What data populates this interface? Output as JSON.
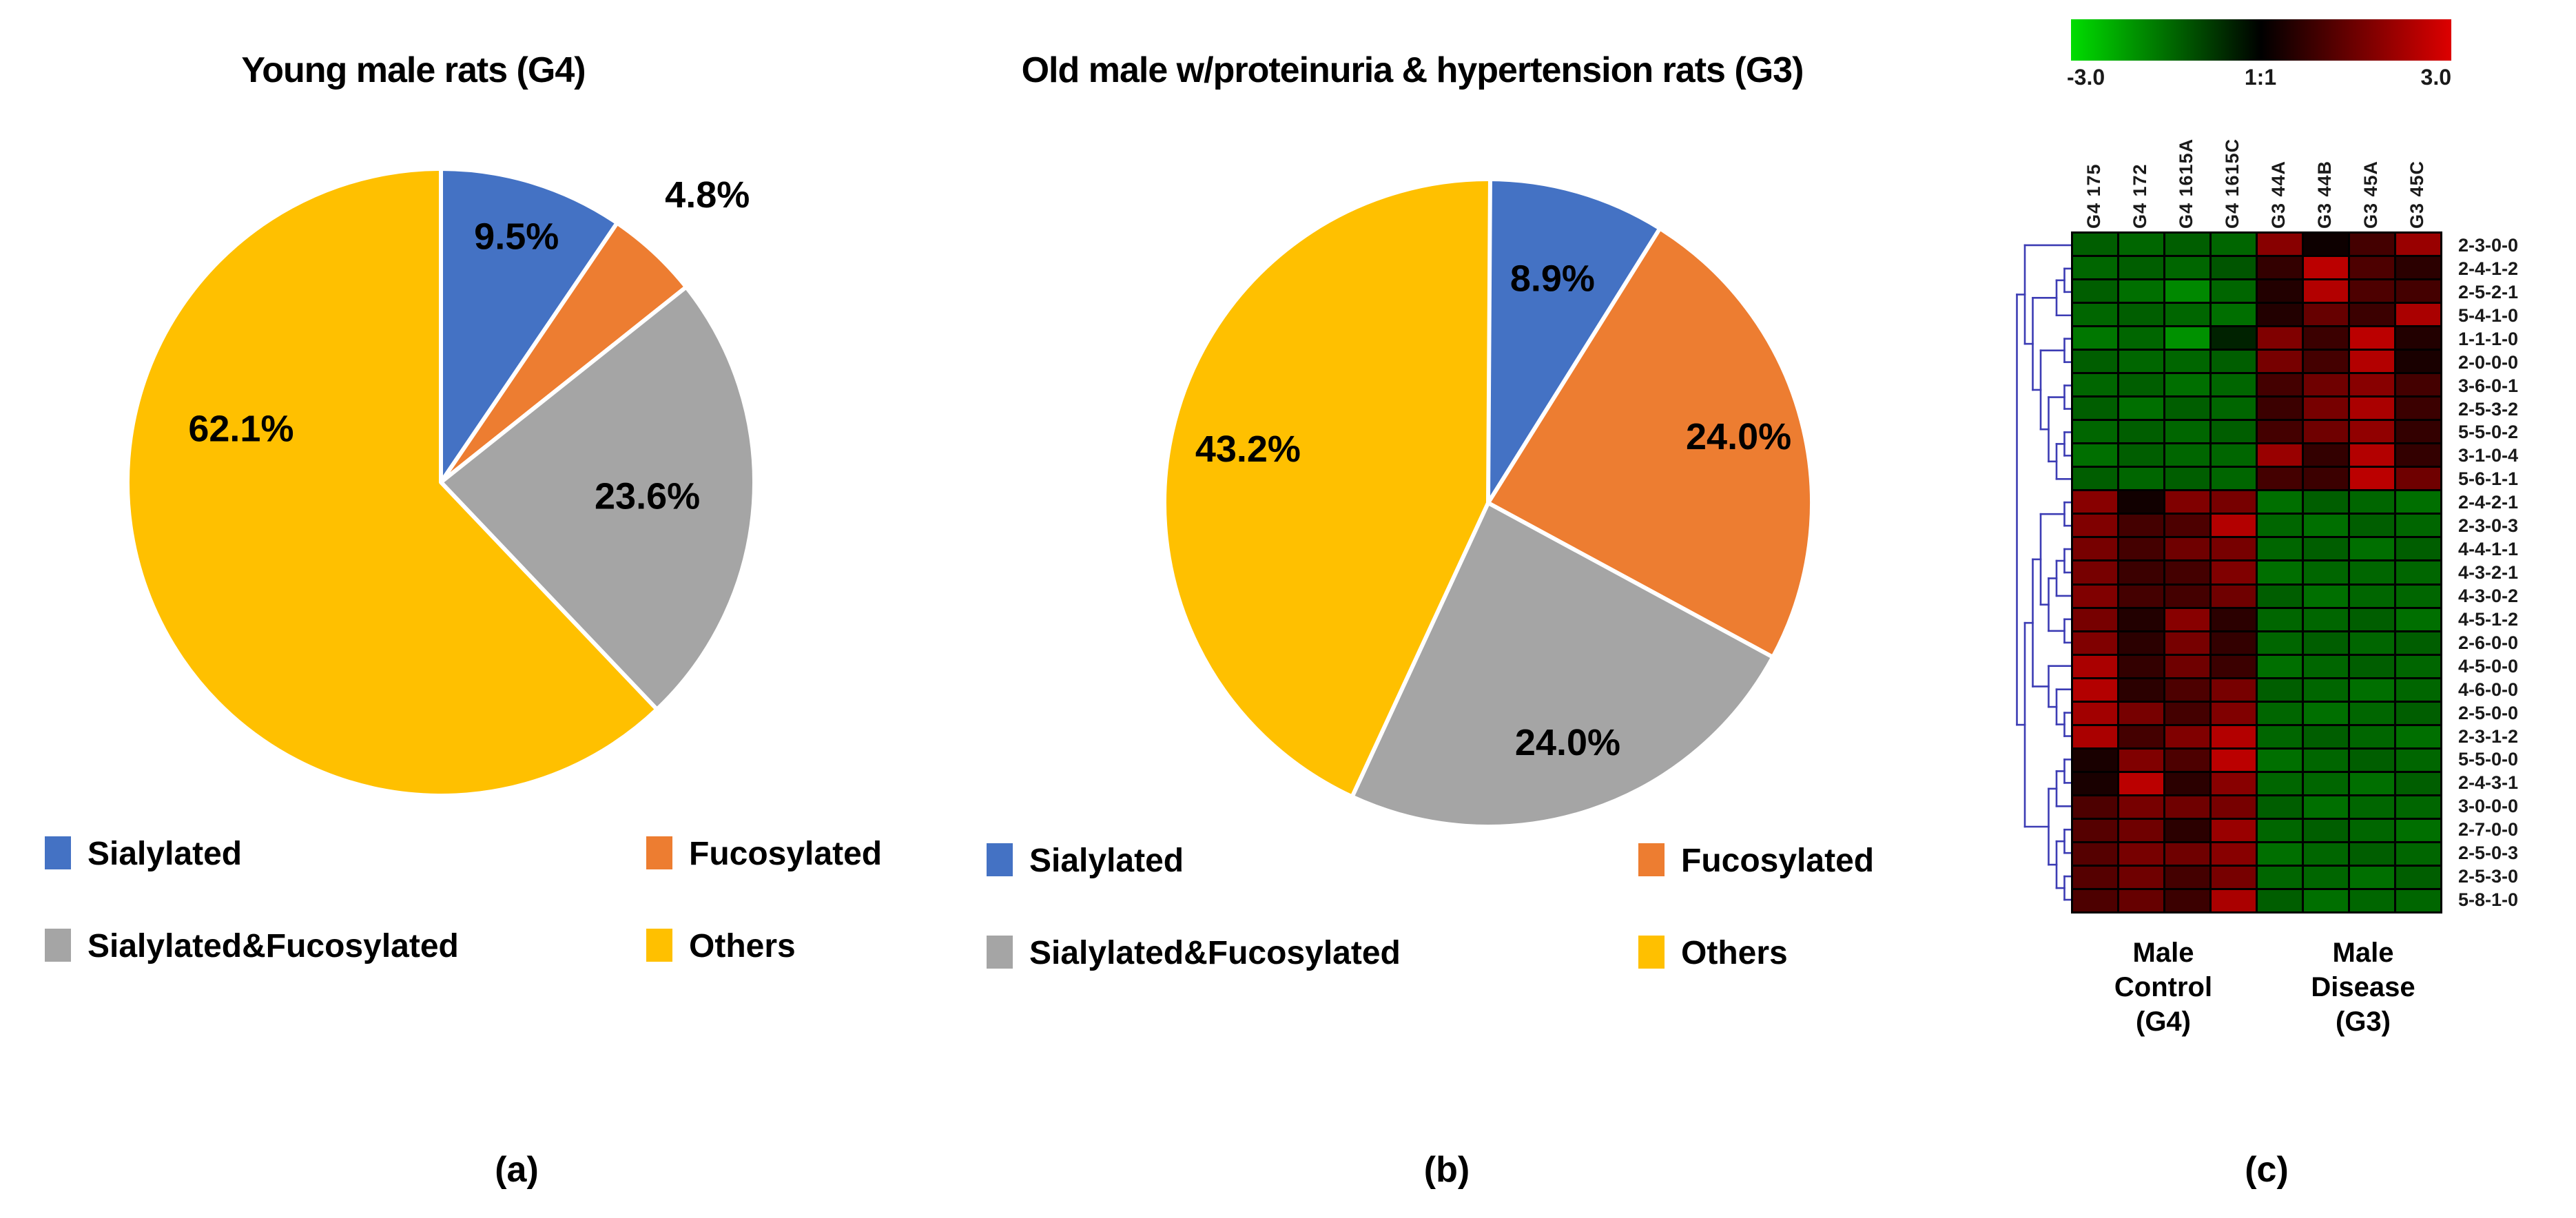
{
  "chart_data": [
    {
      "type": "pie",
      "title": "Young male rats (G4)",
      "caption": "(a)",
      "labels": [
        "Sialylated",
        "Fucosylated",
        "Sialylated&Fucosylated",
        "Others"
      ],
      "values": [
        9.5,
        4.8,
        23.6,
        62.1
      ],
      "value_labels": [
        "9.5%",
        "4.8%",
        "23.6%",
        "62.1%"
      ],
      "colors": [
        "#4472C4",
        "#ED7D31",
        "#A5A5A5",
        "#FFC000"
      ],
      "label_r": [
        0.82,
        1.25,
        0.66,
        0.66
      ],
      "label_angle": [
        null,
        null,
        null,
        285
      ],
      "start_angle_deg": 0,
      "direction": "clockwise",
      "center": [
        640,
        700
      ],
      "radius": 455
    },
    {
      "type": "pie",
      "title": "Old male w/proteinuria & hypertension rats  (G3)",
      "caption": "(b)",
      "labels": [
        "Sialylated",
        "Fucosylated",
        "Sialylated&Fucosylated",
        "Others"
      ],
      "values": [
        8.9,
        24.0,
        24.0,
        43.2
      ],
      "value_labels": [
        "8.9%",
        "24.0%",
        "24.0%",
        "43.2%"
      ],
      "colors": [
        "#4472C4",
        "#ED7D31",
        "#A5A5A5",
        "#FFC000"
      ],
      "label_r": [
        0.72,
        0.8,
        0.78,
        0.76
      ],
      "label_angle": [
        null,
        null,
        null,
        null
      ],
      "start_angle_deg": 0,
      "direction": "clockwise",
      "center": [
        2160,
        730
      ],
      "radius": 470
    },
    {
      "type": "heatmap",
      "caption": "(c)",
      "colorbar": {
        "min": -3,
        "max": 3,
        "min_label": "-3.0",
        "mid_label": "1:1",
        "max_label": "3.0"
      },
      "columns": [
        "G4 175",
        "G4 172",
        "G4 1615A",
        "G4 1615C",
        "G3 44A",
        "G3 44B",
        "G3 45A",
        "G3 45C"
      ],
      "rows": [
        "2-3-0-0",
        "2-4-1-2",
        "2-5-2-1",
        "5-4-1-0",
        "1-1-1-0",
        "2-0-0-0",
        "3-6-0-1",
        "2-5-3-2",
        "5-5-0-2",
        "3-1-0-4",
        "5-6-1-1",
        "2-4-2-1",
        "2-3-0-3",
        "4-4-1-1",
        "4-3-2-1",
        "4-3-0-2",
        "4-5-1-2",
        "2-6-0-0",
        "4-5-0-0",
        "4-6-0-0",
        "2-5-0-0",
        "2-3-1-2",
        "5-5-0-0",
        "2-4-3-1",
        "3-0-0-0",
        "2-7-0-0",
        "2-5-0-3",
        "2-5-3-0",
        "5-8-1-0"
      ],
      "group_labels": [
        "Male Control (G4)",
        "Male Disease (G3)"
      ],
      "values": [
        [
          -1.1,
          -1.2,
          -1.1,
          -1.2,
          1.6,
          0.15,
          0.8,
          1.8
        ],
        [
          -1.2,
          -1.1,
          -1.2,
          -1.0,
          0.6,
          2.2,
          0.9,
          0.5
        ],
        [
          -1.1,
          -1.3,
          -1.6,
          -1.2,
          0.4,
          2.1,
          0.9,
          0.8
        ],
        [
          -1.2,
          -1.1,
          -1.2,
          -1.3,
          0.4,
          1.2,
          0.7,
          2.0
        ],
        [
          -1.4,
          -1.2,
          -1.7,
          -0.4,
          1.5,
          0.7,
          2.2,
          0.4
        ],
        [
          -1.1,
          -1.2,
          -1.2,
          -1.1,
          1.4,
          0.8,
          2.1,
          0.3
        ],
        [
          -1.2,
          -1.1,
          -1.3,
          -1.2,
          0.8,
          1.3,
          1.6,
          0.8
        ],
        [
          -1.1,
          -1.3,
          -1.1,
          -1.2,
          0.7,
          1.4,
          2.0,
          0.7
        ],
        [
          -1.2,
          -1.1,
          -1.2,
          -1.1,
          0.8,
          1.3,
          1.7,
          0.6
        ],
        [
          -1.3,
          -1.1,
          -1.2,
          -1.2,
          1.8,
          0.6,
          2.1,
          0.6
        ],
        [
          -1.1,
          -1.2,
          -1.1,
          -1.2,
          0.8,
          0.7,
          2.2,
          1.3
        ],
        [
          1.6,
          0.2,
          1.5,
          1.4,
          -1.3,
          -1.1,
          -1.2,
          -1.3
        ],
        [
          1.5,
          0.8,
          0.9,
          2.1,
          -1.2,
          -1.3,
          -1.1,
          -1.2
        ],
        [
          1.4,
          0.8,
          1.3,
          1.4,
          -1.2,
          -1.1,
          -1.3,
          -1.1
        ],
        [
          1.4,
          0.7,
          0.8,
          1.5,
          -1.3,
          -1.2,
          -1.2,
          -1.2
        ],
        [
          1.5,
          0.8,
          0.8,
          1.3,
          -1.1,
          -1.3,
          -1.2,
          -1.2
        ],
        [
          1.4,
          0.4,
          1.6,
          0.5,
          -1.2,
          -1.2,
          -1.1,
          -1.3
        ],
        [
          1.5,
          0.5,
          1.4,
          0.6,
          -1.2,
          -1.1,
          -1.2,
          -1.1
        ],
        [
          2.0,
          0.6,
          1.3,
          0.7,
          -1.3,
          -1.2,
          -1.1,
          -1.2
        ],
        [
          2.1,
          0.5,
          0.9,
          1.4,
          -1.1,
          -1.2,
          -1.3,
          -1.2
        ],
        [
          1.9,
          1.4,
          0.8,
          1.5,
          -1.2,
          -1.3,
          -1.2,
          -1.1
        ],
        [
          2.0,
          0.8,
          1.5,
          2.1,
          -1.2,
          -1.1,
          -1.2,
          -1.3
        ],
        [
          0.3,
          1.5,
          0.9,
          2.2,
          -1.3,
          -1.2,
          -1.1,
          -1.2
        ],
        [
          0.3,
          2.2,
          0.5,
          1.6,
          -1.2,
          -1.2,
          -1.3,
          -1.1
        ],
        [
          0.9,
          1.4,
          1.3,
          1.4,
          -1.1,
          -1.3,
          -1.2,
          -1.2
        ],
        [
          1.0,
          1.3,
          0.5,
          1.8,
          -1.2,
          -1.1,
          -1.2,
          -1.3
        ],
        [
          1.0,
          1.4,
          1.3,
          1.6,
          -1.3,
          -1.2,
          -1.1,
          -1.2
        ],
        [
          1.0,
          1.3,
          0.8,
          1.4,
          -1.2,
          -1.2,
          -1.3,
          -1.1
        ],
        [
          0.9,
          1.2,
          0.7,
          2.0,
          -1.1,
          -1.3,
          -1.2,
          -1.2
        ]
      ],
      "dendrogram_color": "#3C3CB4",
      "dendrogram": [
        [
          1,
          [
            [
              [
                2,
                3
              ],
              4
            ],
            [
              [
                5,
                6
              ],
              [
                [
                  7,
                  8
                ],
                [
                  [
                    9,
                    10
                  ],
                  11
                ]
              ]
            ]
          ]
        ],
        [
          [
            [
              [
                12,
                13
              ],
              [
                [
                  [
                    14,
                    15
                  ],
                  16
                ],
                [
                  17,
                  18
                ]
              ]
            ],
            [
              19,
              [
                20,
                [
                  21,
                  22
                ]
              ]
            ]
          ],
          [
            [
              [
                23,
                24
              ],
              25
            ],
            [
              [
                26,
                27
              ],
              [
                28,
                29
              ]
            ]
          ]
        ]
      ]
    }
  ]
}
